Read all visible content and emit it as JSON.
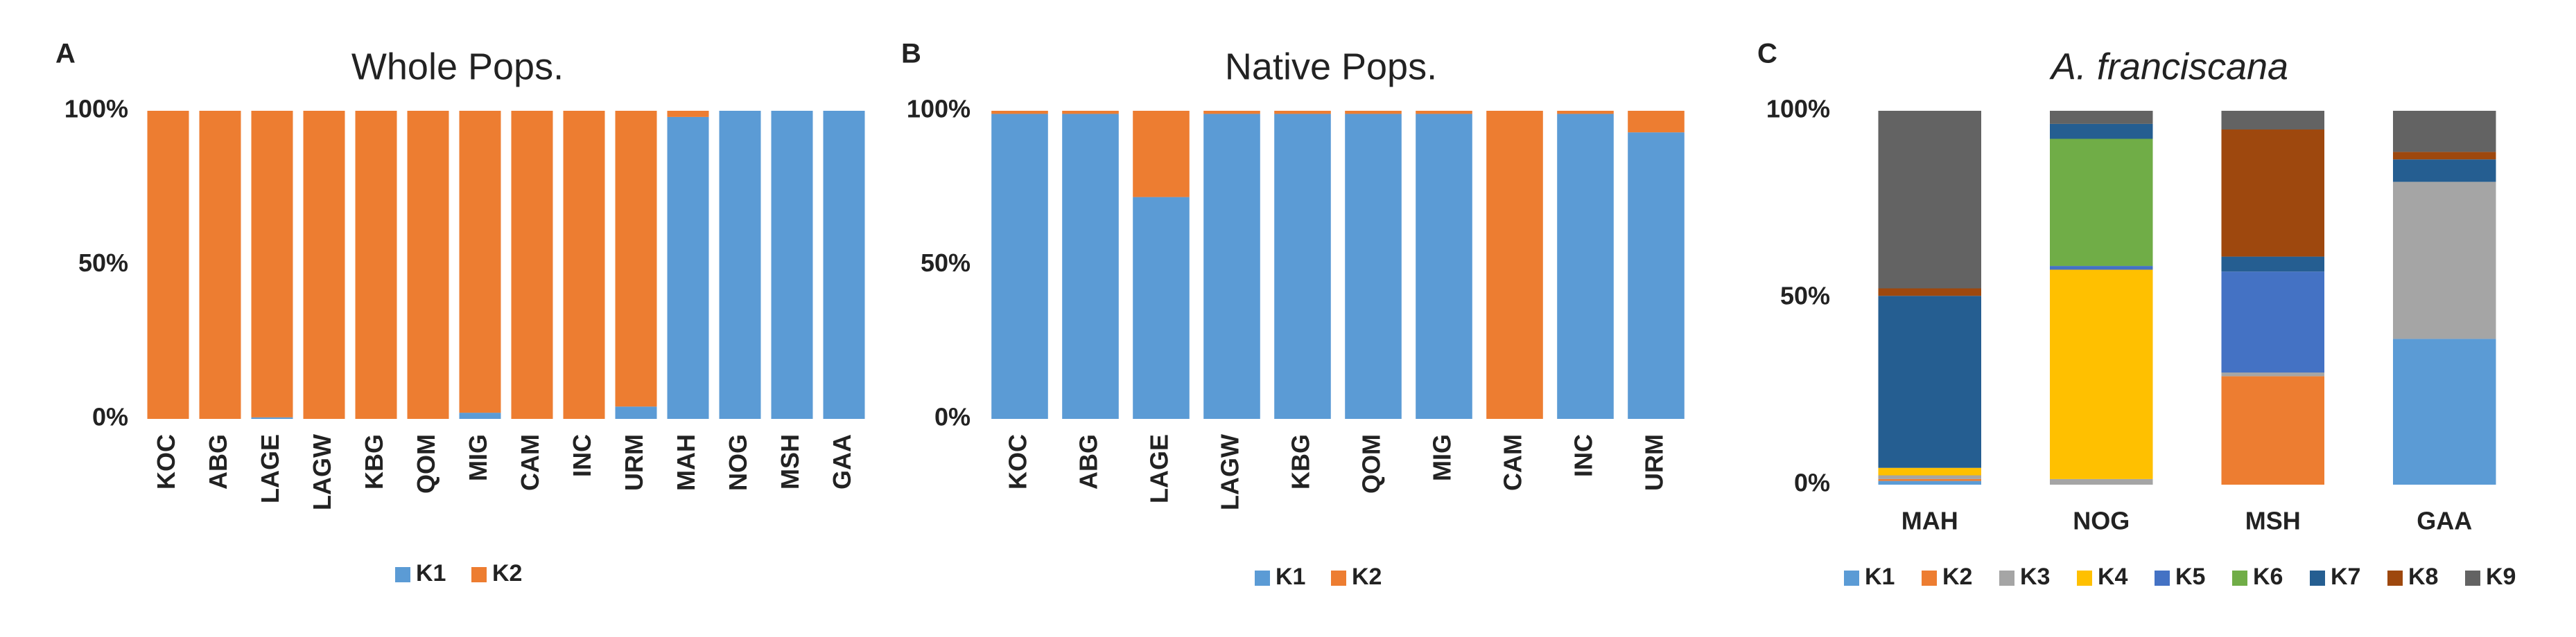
{
  "chart_data": [
    {
      "type": "stacked_bar",
      "panel": "A",
      "title": "Whole Pops.",
      "categories": [
        "KOC",
        "ABG",
        "LAGE",
        "LAGW",
        "KBG",
        "QOM",
        "MIG",
        "CAM",
        "INC",
        "URM",
        "MAH",
        "NOG",
        "MSH",
        "GAA"
      ],
      "series": [
        {
          "name": "K1",
          "color": "#5b9bd5",
          "values": [
            0,
            0,
            0.5,
            0,
            0,
            0,
            2,
            0,
            0,
            4,
            98,
            100,
            100,
            100
          ]
        },
        {
          "name": "K2",
          "color": "#ed7d31",
          "values": [
            100,
            100,
            99.5,
            100,
            100,
            100,
            98,
            100,
            100,
            96,
            2,
            0,
            0,
            0
          ]
        }
      ],
      "ylim": [
        0,
        100
      ],
      "yticks": [
        {
          "value": 0,
          "label": "0%"
        },
        {
          "value": 50,
          "label": "50%"
        },
        {
          "value": 100,
          "label": "100%"
        }
      ]
    },
    {
      "type": "stacked_bar",
      "panel": "B",
      "title": "Native Pops.",
      "categories": [
        "KOC",
        "ABG",
        "LAGE",
        "LAGW",
        "KBG",
        "QOM",
        "MIG",
        "CAM",
        "INC",
        "URM"
      ],
      "series": [
        {
          "name": "K1",
          "color": "#5b9bd5",
          "values": [
            99,
            99,
            72,
            99,
            99,
            99,
            99,
            0,
            99,
            93
          ]
        },
        {
          "name": "K2",
          "color": "#ed7d31",
          "values": [
            1,
            1,
            28,
            1,
            1,
            1,
            1,
            100,
            1,
            7
          ]
        }
      ],
      "ylim": [
        0,
        100
      ],
      "yticks": [
        {
          "value": 0,
          "label": "0%"
        },
        {
          "value": 50,
          "label": "50%"
        },
        {
          "value": 100,
          "label": "100%"
        }
      ]
    },
    {
      "type": "stacked_bar",
      "panel": "C",
      "title": "A. franciscana",
      "categories": [
        "MAH",
        "NOG",
        "MSH",
        "GAA"
      ],
      "series": [
        {
          "name": "K1",
          "color": "#5b9bd5",
          "values": [
            1,
            0,
            0,
            39
          ]
        },
        {
          "name": "K2",
          "color": "#ed7d31",
          "values": [
            0.5,
            0,
            29,
            0
          ]
        },
        {
          "name": "K3",
          "color": "#a5a5a5",
          "values": [
            1,
            1.5,
            1,
            42
          ]
        },
        {
          "name": "K4",
          "color": "#ffc000",
          "values": [
            2,
            56,
            0,
            0
          ]
        },
        {
          "name": "K5",
          "color": "#4472c4",
          "values": [
            0,
            1,
            27,
            0
          ]
        },
        {
          "name": "K6",
          "color": "#70ad47",
          "values": [
            0,
            34,
            0,
            0
          ]
        },
        {
          "name": "K7",
          "color": "#255e91",
          "values": [
            46,
            4,
            4,
            6
          ]
        },
        {
          "name": "K8",
          "color": "#9e480e",
          "values": [
            2,
            0,
            34,
            2
          ]
        },
        {
          "name": "K9",
          "color": "#636363",
          "values": [
            47.5,
            3.5,
            5,
            11
          ]
        }
      ],
      "ylim": [
        0,
        100
      ],
      "yticks": [
        {
          "value": 0,
          "label": "0%"
        },
        {
          "value": 50,
          "label": "50%"
        },
        {
          "value": 100,
          "label": "100%"
        }
      ]
    }
  ]
}
